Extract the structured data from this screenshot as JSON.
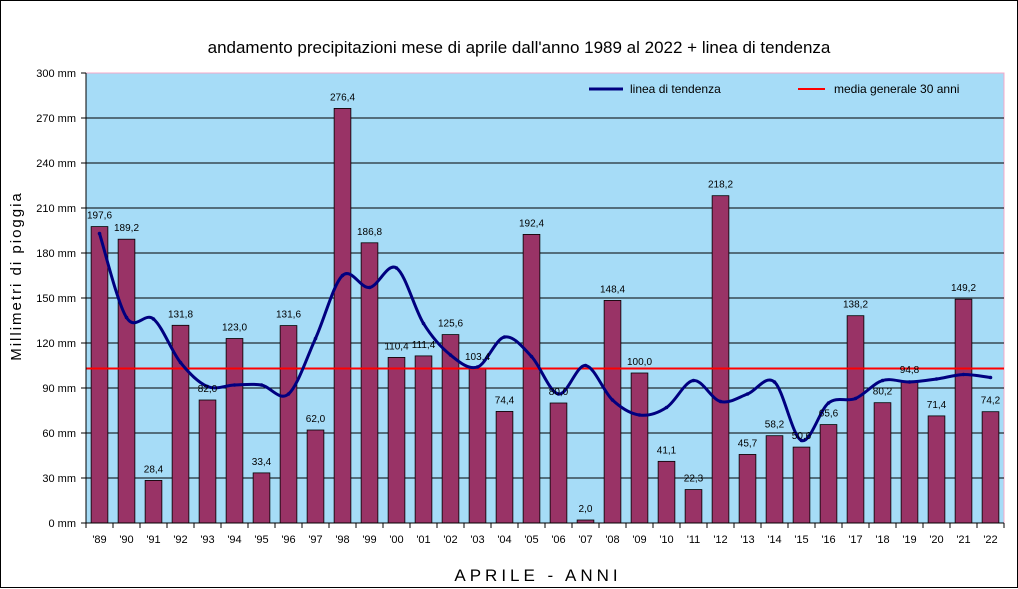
{
  "chart_data": {
    "type": "bar",
    "title": "andamento precipitazioni mese di aprile dall'anno 1989 al 2022 + linea di tendenza",
    "xlabel": "APRILE - ANNI",
    "ylabel": "Millimetri di pioggia",
    "ylim": [
      0,
      300
    ],
    "yticks": [
      0,
      30,
      60,
      90,
      120,
      150,
      180,
      210,
      240,
      270,
      300
    ],
    "ytick_labels": [
      "0 mm",
      "30 mm",
      "60 mm",
      "90 mm",
      "120 mm",
      "150 mm",
      "180 mm",
      "210 mm",
      "240 mm",
      "270 mm",
      "300 mm"
    ],
    "categories": [
      "'89",
      "'90",
      "'91",
      "'92",
      "'93",
      "'94",
      "'95",
      "'96",
      "'97",
      "'98",
      "'99",
      "'00",
      "'01",
      "'02",
      "'03",
      "'04",
      "'05",
      "'06",
      "'07",
      "'08",
      "'09",
      "'10",
      "'11",
      "'12",
      "'13",
      "'14",
      "'15",
      "'16",
      "'17",
      "'18",
      "'19",
      "'20",
      "'21",
      "'22"
    ],
    "values": [
      197.6,
      189.2,
      28.4,
      131.8,
      82.0,
      123.0,
      33.4,
      131.6,
      62.0,
      276.4,
      186.8,
      110.4,
      111.4,
      125.6,
      103.4,
      74.4,
      192.4,
      80.0,
      2.0,
      148.4,
      100.0,
      41.1,
      22.3,
      218.2,
      45.7,
      58.2,
      50.6,
      65.6,
      138.2,
      80.2,
      94.8,
      71.4,
      149.2,
      74.2
    ],
    "value_labels": [
      "197,6",
      "189,2",
      "28,4",
      "131,8",
      "82,0",
      "123,0",
      "33,4",
      "131,6",
      "62,0",
      "276,4",
      "186,8",
      "110,4",
      "111,4",
      "125,6",
      "103,4",
      "74,4",
      "192,4",
      "80,0",
      "2,0",
      "148,4",
      "100,0",
      "41,1",
      "22,3",
      "218,2",
      "45,7",
      "58,2",
      "50,6",
      "65,6",
      "138,2",
      "80,2",
      "94,8",
      "71,4",
      "149,2",
      "74,2"
    ],
    "trend": {
      "name": "linea di tendenza",
      "values": [
        193,
        137,
        136,
        107,
        91,
        92,
        92,
        86,
        123,
        165,
        157,
        170,
        133,
        112,
        104,
        124,
        111,
        86,
        105,
        82,
        72,
        77,
        95,
        81,
        86,
        94,
        55,
        80,
        83,
        95,
        94,
        96,
        99,
        97
      ]
    },
    "average": {
      "name": "media generale 30 anni",
      "value": 103
    },
    "colors": {
      "bar": "#993366",
      "trend": "#000080",
      "average": "#ff0000",
      "plot_bg": "#a6dcf7",
      "grid": "#000000",
      "plot_border": "#f4a8c8"
    },
    "grid": true,
    "legend_position": "top-right"
  }
}
